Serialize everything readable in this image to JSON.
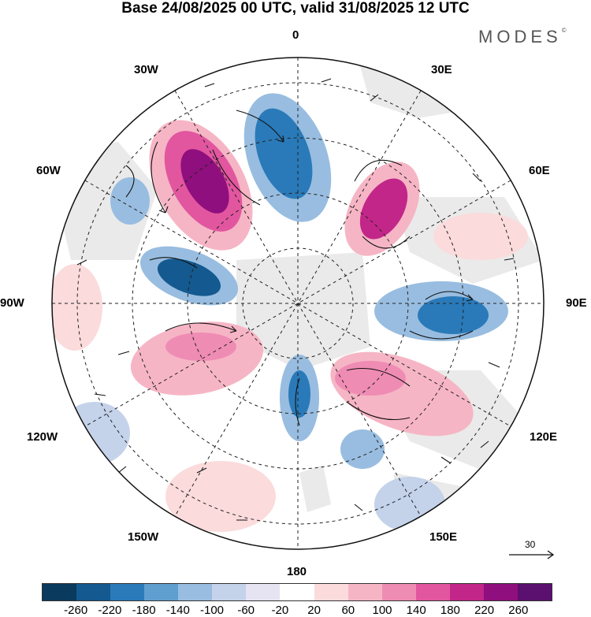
{
  "title": "Base 24/08/2025 00 UTC, valid 31/08/2025 12 UTC",
  "brand": "MODES",
  "brand_mark": "©",
  "longitude_labels": {
    "l0": "0",
    "l30e": "30E",
    "l60e": "60E",
    "l90e": "90E",
    "l120e": "120E",
    "l150e": "150E",
    "l180": "180",
    "l150w": "150W",
    "l120w": "120W",
    "l90w": "90W",
    "l60w": "60W",
    "l30w": "30W"
  },
  "wind_reference": {
    "label": "30"
  },
  "colorbar": {
    "colors": [
      "#0a3a5e",
      "#14598f",
      "#2a7ab9",
      "#5e9fd0",
      "#98bde0",
      "#c4d2ea",
      "#e6e4f2",
      "#ffffff",
      "#fbdbdc",
      "#f6b5c5",
      "#ef8cb4",
      "#e1569f",
      "#c22689",
      "#8f0f7e",
      "#5b0f6e"
    ],
    "ticks": [
      "-260",
      "-220",
      "-180",
      "-140",
      "-100",
      "-60",
      "-20",
      "20",
      "60",
      "100",
      "140",
      "180",
      "220",
      "260"
    ]
  }
}
